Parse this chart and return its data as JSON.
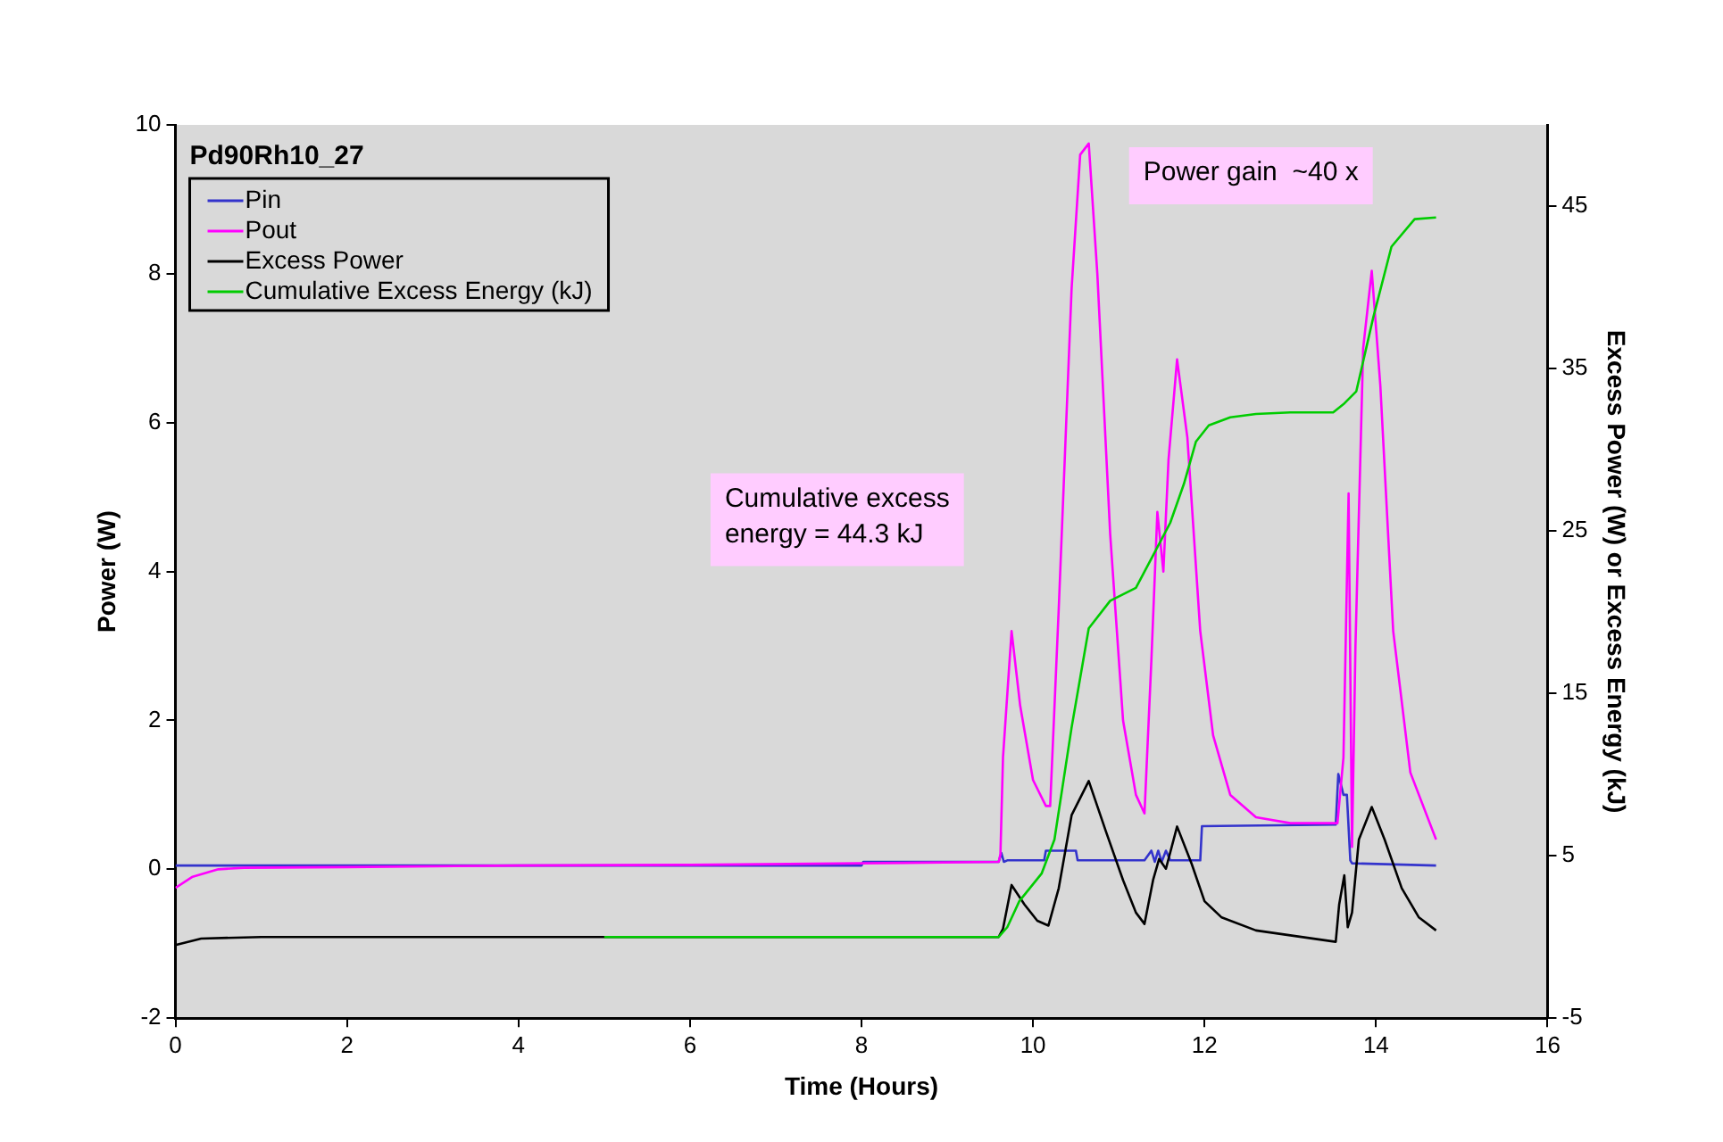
{
  "chart_data": {
    "type": "line",
    "legend_title": "Pd90Rh10_27",
    "xlabel": "Time (Hours)",
    "ylabel": "Power (W)",
    "y2label": "Excess Power (W) or Excess Energy (kJ)",
    "xlim": [
      0,
      16
    ],
    "xticks": [
      0,
      2,
      4,
      6,
      8,
      10,
      12,
      14,
      16
    ],
    "ylim": [
      -2,
      10
    ],
    "yticks": [
      -2,
      0,
      2,
      4,
      6,
      8,
      10
    ],
    "y2lim": [
      -5,
      50
    ],
    "y2ticks": [
      -5,
      5,
      15,
      25,
      35,
      45
    ],
    "grid": false,
    "legend": "top left",
    "marker": "none",
    "line_style": "solid",
    "annotations": [
      "Cumulative excess energy = 44.3 kJ",
      "Power gain  ~40 x"
    ],
    "series": [
      {
        "name": "Pin",
        "color": "#3333cc",
        "x": [
          0,
          4,
          8,
          8.02,
          9.6,
          9.63,
          9.66,
          9.7,
          10.13,
          10.15,
          10.5,
          10.52,
          11.3,
          11.38,
          11.42,
          11.46,
          11.5,
          11.55,
          11.6,
          11.95,
          11.97,
          13.53,
          13.56,
          13.62,
          13.66,
          13.7,
          13.72,
          14.7
        ],
        "values": [
          0.05,
          0.05,
          0.05,
          0.1,
          0.1,
          0.22,
          0.1,
          0.12,
          0.12,
          0.25,
          0.25,
          0.12,
          0.12,
          0.25,
          0.1,
          0.25,
          0.1,
          0.25,
          0.12,
          0.12,
          0.58,
          0.6,
          1.28,
          1.0,
          1.0,
          0.12,
          0.08,
          0.05
        ]
      },
      {
        "name": "Pout",
        "color": "#ff00ff",
        "x": [
          0,
          0.2,
          0.5,
          0.8,
          2,
          4,
          6,
          8,
          9.6,
          9.62,
          9.65,
          9.75,
          9.85,
          10.0,
          10.15,
          10.2,
          10.3,
          10.45,
          10.55,
          10.65,
          10.75,
          10.9,
          11.05,
          11.2,
          11.3,
          11.38,
          11.45,
          11.52,
          11.58,
          11.68,
          11.8,
          11.95,
          12.1,
          12.3,
          12.6,
          13,
          13.55,
          13.62,
          13.68,
          13.72,
          13.76,
          13.85,
          13.95,
          14.05,
          14.2,
          14.4,
          14.7
        ],
        "values": [
          -0.25,
          -0.1,
          0,
          0.02,
          0.03,
          0.05,
          0.06,
          0.08,
          0.1,
          0.2,
          1.5,
          3.2,
          2.2,
          1.2,
          0.85,
          0.85,
          3.5,
          7.8,
          9.6,
          9.75,
          8.0,
          4.5,
          2.0,
          1.0,
          0.75,
          2.8,
          4.8,
          4.0,
          5.5,
          6.85,
          5.8,
          3.2,
          1.8,
          1.0,
          0.7,
          0.62,
          0.62,
          1.5,
          5.05,
          0.3,
          3.0,
          7.0,
          8.04,
          6.5,
          3.2,
          1.3,
          0.4
        ]
      },
      {
        "name": "Excess Power",
        "color": "#000000",
        "axis": "y2",
        "x": [
          0,
          0.3,
          1,
          2,
          4,
          6,
          8,
          9.6,
          9.65,
          9.75,
          9.9,
          10.05,
          10.18,
          10.3,
          10.45,
          10.65,
          10.85,
          11.05,
          11.2,
          11.3,
          11.4,
          11.47,
          11.55,
          11.68,
          11.85,
          12.0,
          12.2,
          12.6,
          13.0,
          13.53,
          13.57,
          13.63,
          13.67,
          13.72,
          13.8,
          13.95,
          14.1,
          14.3,
          14.5,
          14.7
        ],
        "values": [
          -0.5,
          -0.1,
          0,
          0,
          0,
          0,
          0,
          0,
          0.5,
          3.2,
          2.0,
          1.0,
          0.7,
          3.0,
          7.5,
          9.6,
          6.5,
          3.5,
          1.5,
          0.8,
          3.5,
          4.8,
          4.2,
          6.8,
          4.5,
          2.2,
          1.2,
          0.4,
          0.1,
          -0.3,
          2.0,
          3.8,
          0.6,
          1.5,
          6.0,
          8.0,
          6.0,
          3.0,
          1.2,
          0.4
        ]
      },
      {
        "name": "Cumulative Excess Energy (kJ)",
        "color": "#00cc00",
        "axis": "y2",
        "x": [
          5,
          6,
          8,
          9.6,
          9.7,
          9.84,
          10.1,
          10.25,
          10.45,
          10.65,
          10.9,
          11.2,
          11.45,
          11.6,
          11.76,
          11.9,
          12.05,
          12.3,
          12.6,
          13,
          13.5,
          13.62,
          13.77,
          13.97,
          14.18,
          14.45,
          14.7
        ],
        "values": [
          0,
          0,
          0,
          0,
          0.6,
          2.2,
          3.9,
          6,
          12.9,
          19,
          20.7,
          21.5,
          24,
          25.5,
          27.9,
          30.5,
          31.5,
          32,
          32.2,
          32.3,
          32.3,
          32.8,
          33.6,
          38.2,
          42.5,
          44.2,
          44.3
        ]
      }
    ]
  }
}
